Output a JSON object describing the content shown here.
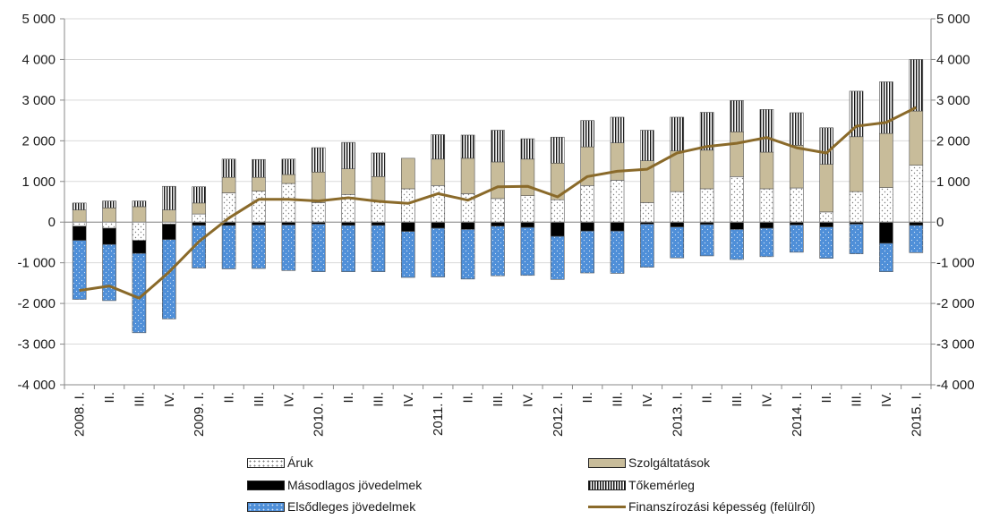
{
  "chart_data": {
    "type": "bar",
    "stacked": true,
    "categories": [
      "2008. I.",
      "II.",
      "III.",
      "IV.",
      "2009. I.",
      "II.",
      "III.",
      "IV.",
      "2010. I.",
      "II.",
      "III.",
      "IV.",
      "2011. I.",
      "II.",
      "III.",
      "IV.",
      "2012. I.",
      "II.",
      "III.",
      "IV.",
      "2013. I.",
      "II.",
      "III.",
      "IV.",
      "2014. I.",
      "II.",
      "III.",
      "IV.",
      "2015. I."
    ],
    "ylim": [
      -4000,
      5000
    ],
    "yticks": [
      5000,
      4000,
      3000,
      2000,
      1000,
      0,
      -1000,
      -2000,
      -3000,
      -4000
    ],
    "ytick_labels": [
      "5 000",
      "4 000",
      "3 000",
      "2 000",
      "1 000",
      "0",
      "-1 000",
      "-2 000",
      "-3 000",
      "-4 000"
    ],
    "grid": true,
    "legend_position": "bottom",
    "series": [
      {
        "key": "aruk",
        "name": "Áruk",
        "color": "#ffffff",
        "pattern": "dots",
        "values": [
          -100,
          -150,
          -450,
          -50,
          200,
          720,
          760,
          950,
          480,
          680,
          520,
          820,
          900,
          700,
          580,
          650,
          550,
          900,
          1030,
          480,
          750,
          820,
          1120,
          820,
          840,
          250,
          750,
          850,
          1400
        ]
      },
      {
        "key": "szolg",
        "name": "Szolgáltatások",
        "color": "#c8bc9a",
        "pattern": "solid",
        "values": [
          300,
          350,
          380,
          300,
          270,
          380,
          340,
          220,
          750,
          630,
          600,
          750,
          650,
          870,
          900,
          900,
          900,
          950,
          920,
          1030,
          1000,
          950,
          1100,
          900,
          1050,
          1170,
          1350,
          1330,
          1330
        ]
      },
      {
        "key": "toke",
        "name": "Tőkemérleg",
        "color": "#ffffff",
        "pattern": "vlines",
        "values": [
          170,
          170,
          140,
          580,
          400,
          450,
          440,
          380,
          600,
          650,
          580,
          0,
          600,
          570,
          780,
          500,
          640,
          650,
          630,
          750,
          830,
          930,
          770,
          1050,
          800,
          900,
          1120,
          1270,
          1270
        ]
      },
      {
        "key": "masod",
        "name": "Másodlagos jövedelmek",
        "color": "#000000",
        "pattern": "solid",
        "values": [
          -350,
          -400,
          -320,
          -380,
          -80,
          -80,
          -70,
          -70,
          -50,
          -80,
          -80,
          -230,
          -150,
          -180,
          -100,
          -130,
          -350,
          -220,
          -220,
          -50,
          -120,
          -60,
          -180,
          -150,
          -70,
          -120,
          -50,
          -520,
          -80
        ]
      },
      {
        "key": "elso",
        "name": "Elsődleges jövedelmek",
        "color": "#4f8fd8",
        "pattern": "dots",
        "values": [
          -1450,
          -1380,
          -1950,
          -1950,
          -1050,
          -1070,
          -1070,
          -1120,
          -1170,
          -1140,
          -1140,
          -1130,
          -1200,
          -1220,
          -1220,
          -1180,
          -1060,
          -1030,
          -1040,
          -1060,
          -760,
          -770,
          -740,
          -700,
          -670,
          -770,
          -730,
          -700,
          -670
        ]
      }
    ],
    "line": {
      "name": "Finanszírozási képesség (felülről)",
      "color": "#8a6a2a",
      "values": [
        -1680,
        -1570,
        -1870,
        -1230,
        -480,
        100,
        560,
        560,
        520,
        600,
        510,
        460,
        700,
        540,
        870,
        880,
        620,
        1120,
        1250,
        1300,
        1700,
        1860,
        1940,
        2080,
        1830,
        1700,
        2360,
        2450,
        2820
      ]
    }
  }
}
